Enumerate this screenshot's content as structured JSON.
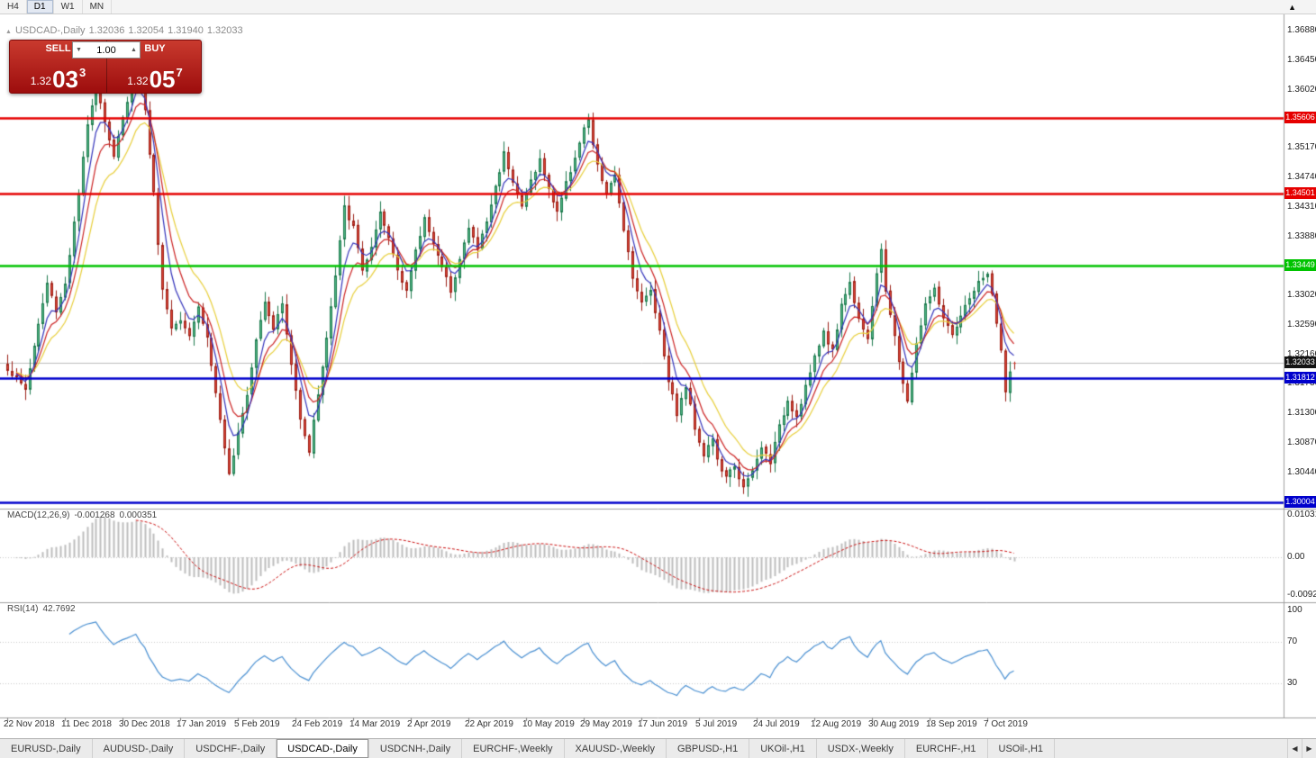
{
  "toolbar": {
    "items": [
      {
        "label": "H4",
        "active": false
      },
      {
        "label": "D1",
        "active": true
      },
      {
        "label": "W1",
        "active": false
      },
      {
        "label": "MN",
        "active": false
      }
    ],
    "collapse_icon": "▲"
  },
  "chart": {
    "title": {
      "marker": "▲",
      "symbol": "USDCAD-,Daily",
      "open": "1.32036",
      "high": "1.32054",
      "low": "1.31940",
      "close": "1.32033"
    },
    "one_click": {
      "sell_label": "SELL",
      "buy_label": "BUY",
      "volume": "1.00",
      "spin_down": "▼",
      "spin_up": "▲",
      "sell_price": {
        "prefix": "1.32",
        "big": "03",
        "sup": "3"
      },
      "buy_price": {
        "prefix": "1.32",
        "big": "05",
        "sup": "7"
      }
    },
    "price_scale": [
      {
        "label": "1.36880",
        "value": 1.3688
      },
      {
        "label": "1.36450",
        "value": 1.3645
      },
      {
        "label": "1.36020",
        "value": 1.3602
      },
      {
        "label": "1.35170",
        "value": 1.3517
      },
      {
        "label": "1.34740",
        "value": 1.3474
      },
      {
        "label": "1.34310",
        "value": 1.3431
      },
      {
        "label": "1.33880",
        "value": 1.3388
      },
      {
        "label": "1.33020",
        "value": 1.3302
      },
      {
        "label": "1.32590",
        "value": 1.3259
      },
      {
        "label": "1.32160",
        "value": 1.3216
      },
      {
        "label": "1.31730",
        "value": 1.3173
      },
      {
        "label": "1.31300",
        "value": 1.313
      },
      {
        "label": "1.30870",
        "value": 1.3087
      },
      {
        "label": "1.30440",
        "value": 1.3044
      }
    ],
    "macd_label": {
      "name": "MACD(12,26,9)",
      "main": "-0.001268",
      "signal": "0.000351"
    },
    "macd_scale": [
      {
        "label": "0.0103111",
        "value": 0.0103111
      },
      {
        "label": "0.00",
        "value": 0
      },
      {
        "label": "-0.0092011",
        "value": -0.0092011
      }
    ],
    "rsi_label": {
      "name": "RSI(14)",
      "value": "42.7692"
    },
    "rsi_scale": [
      {
        "label": "100",
        "value": 100
      },
      {
        "label": "70",
        "value": 70
      },
      {
        "label": "30",
        "value": 30
      }
    ],
    "date_axis": [
      "22 Nov 2018",
      "11 Dec 2018",
      "30 Dec 2018",
      "17 Jan 2019",
      "5 Feb 2019",
      "24 Feb 2019",
      "14 Mar 2019",
      "2 Apr 2019",
      "22 Apr 2019",
      "10 May 2019",
      "29 May 2019",
      "17 Jun 2019",
      "5 Jul 2019",
      "24 Jul 2019",
      "12 Aug 2019",
      "30 Aug 2019",
      "18 Sep 2019",
      "7 Oct 2019"
    ]
  },
  "chart_data": {
    "type": "candlestick",
    "symbol": "USDCAD",
    "period": "Daily",
    "bars_count": 228,
    "visible_range": {
      "start": "22 Nov 2018",
      "end": "15 Oct 2019"
    },
    "price_axis_range": [
      1.2994,
      1.3696
    ],
    "ohlc_current": {
      "open": 1.32036,
      "high": 1.32054,
      "low": 1.3194,
      "close": 1.32033
    },
    "close_waypoints": [
      [
        0,
        1.3195
      ],
      [
        4,
        1.3165
      ],
      [
        7,
        1.326
      ],
      [
        9,
        1.332
      ],
      [
        11,
        1.328
      ],
      [
        13,
        1.332
      ],
      [
        16,
        1.345
      ],
      [
        18,
        1.355
      ],
      [
        20,
        1.3615
      ],
      [
        22,
        1.3555
      ],
      [
        24,
        1.3505
      ],
      [
        26,
        1.356
      ],
      [
        29,
        1.364
      ],
      [
        31,
        1.357
      ],
      [
        33,
        1.345
      ],
      [
        35,
        1.331
      ],
      [
        37,
        1.3255
      ],
      [
        39,
        1.327
      ],
      [
        41,
        1.3245
      ],
      [
        43,
        1.3285
      ],
      [
        45,
        1.324
      ],
      [
        47,
        1.316
      ],
      [
        49,
        1.3075
      ],
      [
        50,
        1.304
      ],
      [
        52,
        1.3105
      ],
      [
        54,
        1.316
      ],
      [
        56,
        1.324
      ],
      [
        58,
        1.3295
      ],
      [
        60,
        1.3255
      ],
      [
        62,
        1.329
      ],
      [
        64,
        1.32
      ],
      [
        66,
        1.3125
      ],
      [
        68,
        1.3075
      ],
      [
        70,
        1.316
      ],
      [
        72,
        1.324
      ],
      [
        74,
        1.333
      ],
      [
        76,
        1.343
      ],
      [
        78,
        1.34
      ],
      [
        80,
        1.334
      ],
      [
        82,
        1.337
      ],
      [
        84,
        1.342
      ],
      [
        86,
        1.3385
      ],
      [
        88,
        1.334
      ],
      [
        90,
        1.331
      ],
      [
        92,
        1.3365
      ],
      [
        94,
        1.3415
      ],
      [
        96,
        1.338
      ],
      [
        98,
        1.334
      ],
      [
        100,
        1.331
      ],
      [
        102,
        1.3355
      ],
      [
        104,
        1.34
      ],
      [
        106,
        1.337
      ],
      [
        108,
        1.341
      ],
      [
        110,
        1.346
      ],
      [
        112,
        1.351
      ],
      [
        114,
        1.347
      ],
      [
        116,
        1.343
      ],
      [
        118,
        1.347
      ],
      [
        120,
        1.35
      ],
      [
        122,
        1.3455
      ],
      [
        124,
        1.3425
      ],
      [
        126,
        1.3465
      ],
      [
        128,
        1.3505
      ],
      [
        130,
        1.3545
      ],
      [
        131,
        1.3555
      ],
      [
        133,
        1.349
      ],
      [
        135,
        1.345
      ],
      [
        137,
        1.3475
      ],
      [
        139,
        1.34
      ],
      [
        141,
        1.333
      ],
      [
        143,
        1.329
      ],
      [
        145,
        1.331
      ],
      [
        147,
        1.325
      ],
      [
        149,
        1.318
      ],
      [
        151,
        1.313
      ],
      [
        153,
        1.317
      ],
      [
        155,
        1.311
      ],
      [
        157,
        1.307
      ],
      [
        159,
        1.3095
      ],
      [
        160,
        1.306
      ],
      [
        162,
        1.3035
      ],
      [
        164,
        1.3055
      ],
      [
        166,
        1.302
      ],
      [
        168,
        1.3045
      ],
      [
        170,
        1.308
      ],
      [
        172,
        1.306
      ],
      [
        174,
        1.311
      ],
      [
        176,
        1.315
      ],
      [
        178,
        1.3125
      ],
      [
        180,
        1.317
      ],
      [
        182,
        1.321
      ],
      [
        184,
        1.325
      ],
      [
        186,
        1.322
      ],
      [
        188,
        1.329
      ],
      [
        190,
        1.332
      ],
      [
        192,
        1.327
      ],
      [
        194,
        1.324
      ],
      [
        196,
        1.333
      ],
      [
        197,
        1.337
      ],
      [
        198,
        1.331
      ],
      [
        200,
        1.324
      ],
      [
        202,
        1.317
      ],
      [
        203,
        1.315
      ],
      [
        205,
        1.323
      ],
      [
        207,
        1.329
      ],
      [
        209,
        1.331
      ],
      [
        211,
        1.327
      ],
      [
        213,
        1.324
      ],
      [
        215,
        1.327
      ],
      [
        217,
        1.33
      ],
      [
        219,
        1.332
      ],
      [
        221,
        1.3335
      ],
      [
        222,
        1.33
      ],
      [
        224,
        1.322
      ],
      [
        225,
        1.3165
      ],
      [
        226,
        1.319
      ],
      [
        227,
        1.32033
      ]
    ],
    "hlines": [
      {
        "value": 1.35606,
        "label": "1.35606",
        "color": "red",
        "kind": "level"
      },
      {
        "value": 1.34501,
        "label": "1.34501",
        "color": "red",
        "kind": "level"
      },
      {
        "value": 1.33449,
        "label": "1.33449",
        "color": "green",
        "kind": "level"
      },
      {
        "value": 1.32033,
        "label": "1.32033",
        "color": "black",
        "kind": "current"
      },
      {
        "value": 1.31812,
        "label": "1.31812",
        "color": "blue",
        "kind": "level"
      },
      {
        "value": 1.30004,
        "label": "1.30004",
        "color": "blue",
        "kind": "level"
      }
    ],
    "moving_averages": [
      {
        "period": 13,
        "color_key": "ma_slow"
      },
      {
        "period": 8,
        "color_key": "ma_mid"
      },
      {
        "period": 5,
        "color_key": "ma_fast"
      }
    ],
    "macd": {
      "fast": 12,
      "slow": 26,
      "signal": 9,
      "current_main": -0.001268,
      "current_signal": 0.000351,
      "scale_max": 0.0103111,
      "scale_min": -0.0092011
    },
    "rsi": {
      "period": 14,
      "current": 42.7692,
      "levels": [
        70,
        30
      ]
    }
  },
  "tabs": {
    "items": [
      {
        "label": "EURUSD-,Daily",
        "active": false
      },
      {
        "label": "AUDUSD-,Daily",
        "active": false
      },
      {
        "label": "USDCHF-,Daily",
        "active": false
      },
      {
        "label": "USDCAD-,Daily",
        "active": true
      },
      {
        "label": "USDCNH-,Daily",
        "active": false
      },
      {
        "label": "EURCHF-,Weekly",
        "active": false
      },
      {
        "label": "XAUUSD-,Weekly",
        "active": false
      },
      {
        "label": "GBPUSD-,H1",
        "active": false
      },
      {
        "label": "UKOil-,H1",
        "active": false
      },
      {
        "label": "USDX-,Weekly",
        "active": false
      },
      {
        "label": "EURCHF-,H1",
        "active": false
      },
      {
        "label": "USOil-,H1",
        "active": false
      }
    ],
    "scroll_left": "◀",
    "scroll_right": "▶"
  },
  "colors": {
    "bull": "#53b987",
    "bull_stroke": "#1e7a4e",
    "bear": "#de4638",
    "bear_stroke": "#9c1f16",
    "ma_fast": "#3333bb",
    "ma_mid": "#cc2222",
    "ma_slow": "#e8cf3a",
    "macd_hist": "#bdbdbd",
    "macd_signal": "#cc1111",
    "rsi_line": "#4a90d2",
    "hline_colors": {
      "red": "#e60000",
      "green": "#00c300",
      "blue": "#0000cc",
      "black": "#141414"
    },
    "current_line": "#bdbdbd",
    "panel_red": "#9d0d0d"
  }
}
